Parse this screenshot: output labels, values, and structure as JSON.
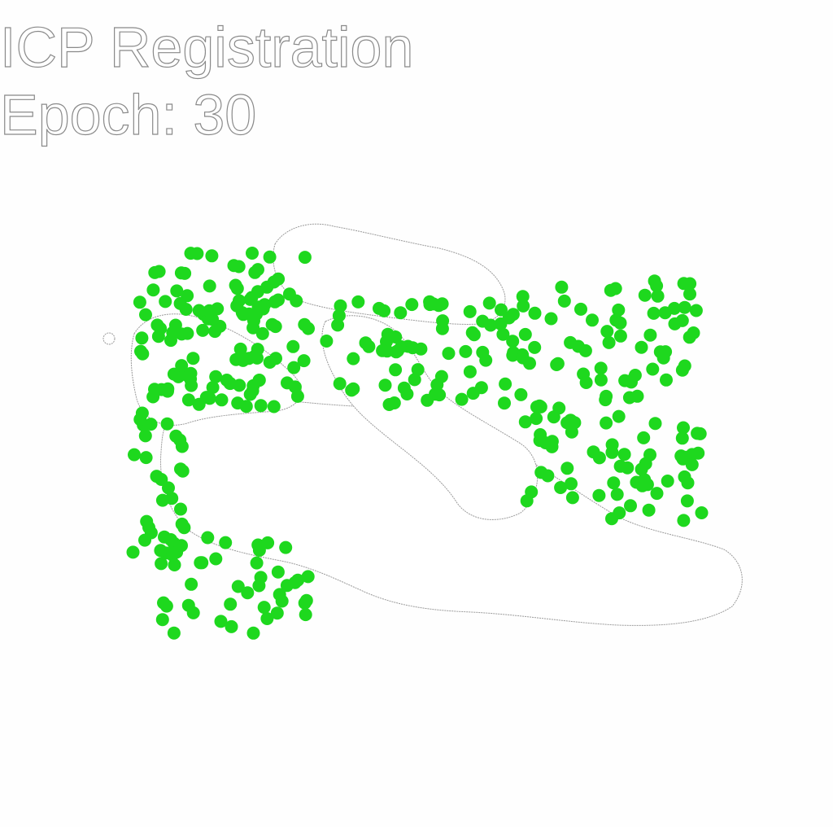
{
  "title": "ICP Registration",
  "epoch_label": "Epoch: 30"
}
